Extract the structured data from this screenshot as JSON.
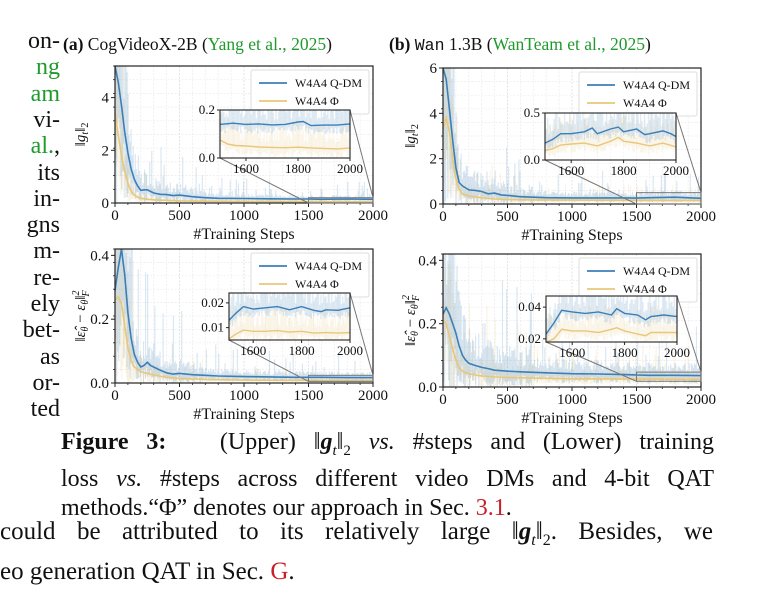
{
  "left_column_fragments": [
    {
      "text": "on-",
      "color": "black"
    },
    {
      "text": "ng",
      "color": "green"
    },
    {
      "text": "am",
      "color": "green"
    },
    {
      "text": "vi-",
      "color": "black"
    },
    {
      "text": "al.",
      "color": "green",
      "suffix": ","
    },
    {
      "text": "its",
      "color": "black"
    },
    {
      "text": "in-",
      "color": "black"
    },
    {
      "text": "gns",
      "color": "black"
    },
    {
      "text": "m-",
      "color": "black"
    },
    {
      "text": "re-",
      "color": "black"
    },
    {
      "text": "ely",
      "color": "black"
    },
    {
      "text": "bet-",
      "color": "black"
    },
    {
      "text": "as",
      "color": "black"
    },
    {
      "text": "or-",
      "color": "black"
    },
    {
      "text": "ted",
      "color": "black"
    }
  ],
  "subfigures": {
    "a": {
      "tag": "(a)",
      "model": "CogVideoX-2B",
      "cite_open": "(",
      "cite_text": "Yang et al.,",
      "cite_year": "2025",
      "cite_close": ")"
    },
    "b": {
      "tag": "(b)",
      "model_mono": "Wan",
      "model_rest": "1.3B",
      "cite_open": "(",
      "cite_text": "WanTeam et al.,",
      "cite_year": "2025",
      "cite_close": ")"
    }
  },
  "legend": {
    "qdm": "W4A4 Q-DM",
    "phi": "W4A4 Φ"
  },
  "colors": {
    "qdm": "#3b7fb8",
    "phi": "#e8c77a",
    "citation_green": "#1f9a2c",
    "ref_red": "#c8202a"
  },
  "xlabel": "#Training Steps",
  "chart_data": [
    {
      "id": "a-upper",
      "type": "line",
      "title": "CogVideoX-2B grad norm",
      "xlabel": "#Training Steps",
      "ylabel": "||g_t||_2",
      "xlim": [
        0,
        2000
      ],
      "ylim": [
        0,
        5.2
      ],
      "xticks": [
        0,
        500,
        1000,
        1500,
        2000
      ],
      "yticks": [
        0,
        2,
        4
      ],
      "ytick_labels": [
        "0",
        "2",
        "4"
      ],
      "grid": true,
      "legend": "top-right",
      "series": [
        {
          "name": "W4A4 Q-DM",
          "x": [
            0,
            25,
            50,
            75,
            100,
            125,
            150,
            175,
            200,
            225,
            250,
            300,
            350,
            400,
            450,
            500,
            600,
            700,
            800,
            1000,
            1200,
            1400,
            1500,
            1600,
            1800,
            2000
          ],
          "y": [
            5.2,
            4.6,
            3.7,
            2.7,
            1.9,
            1.3,
            0.9,
            0.65,
            0.48,
            0.5,
            0.5,
            0.38,
            0.33,
            0.32,
            0.28,
            0.3,
            0.24,
            0.2,
            0.18,
            0.17,
            0.16,
            0.15,
            0.15,
            0.14,
            0.15,
            0.14
          ]
        },
        {
          "name": "W4A4 Φ",
          "x": [
            0,
            25,
            50,
            75,
            100,
            125,
            150,
            175,
            200,
            250,
            300,
            400,
            500,
            700,
            1000,
            1500,
            2000
          ],
          "y": [
            3.4,
            2.6,
            1.8,
            1.2,
            0.75,
            0.45,
            0.3,
            0.22,
            0.18,
            0.14,
            0.12,
            0.1,
            0.08,
            0.07,
            0.06,
            0.05,
            0.04
          ]
        }
      ],
      "inset": {
        "xlim": [
          1500,
          2000
        ],
        "ylim": [
          0,
          0.2
        ],
        "xticks": [
          1600,
          1800,
          2000
        ],
        "yticks": [
          0.0,
          0.2
        ],
        "ytick_labels": [
          "0.0",
          "0.2"
        ],
        "series": [
          {
            "name": "W4A4 Q-DM",
            "x": [
              1500,
              1550,
              1600,
              1650,
              1700,
              1750,
              1800,
              1820,
              1850,
              1900,
              1950,
              2000
            ],
            "y": [
              0.14,
              0.145,
              0.14,
              0.142,
              0.138,
              0.14,
              0.15,
              0.152,
              0.135,
              0.137,
              0.137,
              0.142
            ]
          },
          {
            "name": "W4A4 Φ",
            "x": [
              1500,
              1530,
              1560,
              1600,
              1650,
              1700,
              1750,
              1800,
              1850,
              1900,
              1950,
              2000
            ],
            "y": [
              0.075,
              0.058,
              0.052,
              0.05,
              0.046,
              0.044,
              0.043,
              0.045,
              0.042,
              0.04,
              0.038,
              0.042
            ]
          }
        ]
      }
    },
    {
      "id": "b-upper",
      "type": "line",
      "title": "Wan 1.3B grad norm",
      "xlabel": "#Training Steps",
      "ylabel": "||g_t||_2",
      "xlim": [
        0,
        2000
      ],
      "ylim": [
        0,
        6
      ],
      "xticks": [
        0,
        500,
        1000,
        1500,
        2000
      ],
      "yticks": [
        0,
        2,
        4,
        6
      ],
      "ytick_labels": [
        "0",
        "2",
        "4",
        "6"
      ],
      "grid": true,
      "legend": "top-right",
      "series": [
        {
          "name": "W4A4 Q-DM",
          "x": [
            0,
            25,
            50,
            75,
            100,
            125,
            150,
            200,
            250,
            300,
            350,
            400,
            450,
            500,
            600,
            700,
            800,
            1000,
            1200,
            1400,
            1500,
            1600,
            1800,
            2000
          ],
          "y": [
            6.0,
            5.5,
            4.2,
            2.8,
            1.6,
            0.95,
            0.8,
            0.62,
            0.6,
            0.55,
            0.45,
            0.48,
            0.4,
            0.38,
            0.32,
            0.3,
            0.28,
            0.27,
            0.27,
            0.27,
            0.26,
            0.28,
            0.3,
            0.25
          ]
        },
        {
          "name": "W4A4 Φ",
          "x": [
            0,
            25,
            50,
            75,
            100,
            125,
            150,
            200,
            300,
            400,
            500,
            700,
            1000,
            1500,
            2000
          ],
          "y": [
            3.3,
            3.8,
            3.2,
            2.0,
            1.1,
            0.65,
            0.45,
            0.35,
            0.28,
            0.22,
            0.2,
            0.18,
            0.17,
            0.16,
            0.15
          ]
        }
      ],
      "inset": {
        "xlim": [
          1500,
          2000
        ],
        "ylim": [
          0,
          0.5
        ],
        "xticks": [
          1600,
          1800,
          2000
        ],
        "yticks": [
          0.0,
          0.5
        ],
        "ytick_labels": [
          "0.0",
          "0.5"
        ],
        "series": [
          {
            "name": "W4A4 Q-DM",
            "x": [
              1500,
              1530,
              1560,
              1600,
              1650,
              1680,
              1700,
              1750,
              1780,
              1800,
              1850,
              1880,
              1900,
              1950,
              1980,
              2000
            ],
            "y": [
              0.18,
              0.22,
              0.28,
              0.28,
              0.3,
              0.34,
              0.28,
              0.33,
              0.35,
              0.3,
              0.33,
              0.27,
              0.28,
              0.31,
              0.28,
              0.25
            ]
          },
          {
            "name": "W4A4 Φ",
            "x": [
              1500,
              1530,
              1560,
              1600,
              1650,
              1700,
              1750,
              1780,
              1800,
              1850,
              1900,
              1950,
              2000
            ],
            "y": [
              0.1,
              0.12,
              0.16,
              0.17,
              0.18,
              0.15,
              0.2,
              0.24,
              0.2,
              0.18,
              0.15,
              0.18,
              0.14
            ]
          }
        ]
      }
    },
    {
      "id": "a-lower",
      "type": "line",
      "title": "CogVideoX-2B training loss",
      "xlabel": "#Training Steps",
      "ylabel": "||ε̂_θ − ε_θ||_F^2",
      "xlim": [
        0,
        2000
      ],
      "ylim": [
        0,
        0.42
      ],
      "xticks": [
        0,
        500,
        1000,
        1500,
        2000
      ],
      "yticks": [
        0.0,
        0.2,
        0.4
      ],
      "ytick_labels": [
        "0.0",
        "0.2",
        "0.4"
      ],
      "grid": true,
      "legend": "top-right",
      "series": [
        {
          "name": "W4A4 Q-DM",
          "x": [
            0,
            25,
            50,
            75,
            100,
            125,
            150,
            175,
            200,
            225,
            250,
            275,
            300,
            350,
            400,
            450,
            500,
            600,
            700,
            800,
            1000,
            1200,
            1400,
            1500,
            1600,
            1800,
            2000
          ],
          "y": [
            0.29,
            0.36,
            0.42,
            0.34,
            0.22,
            0.14,
            0.09,
            0.065,
            0.05,
            0.055,
            0.065,
            0.055,
            0.05,
            0.04,
            0.032,
            0.028,
            0.03,
            0.026,
            0.024,
            0.022,
            0.02,
            0.019,
            0.018,
            0.018,
            0.018,
            0.017,
            0.017
          ]
        },
        {
          "name": "W4A4 Φ",
          "x": [
            0,
            25,
            50,
            75,
            100,
            125,
            150,
            200,
            250,
            300,
            400,
            500,
            700,
            1000,
            1500,
            2000
          ],
          "y": [
            0.26,
            0.27,
            0.25,
            0.18,
            0.11,
            0.07,
            0.05,
            0.035,
            0.03,
            0.025,
            0.018,
            0.014,
            0.011,
            0.009,
            0.008,
            0.008
          ]
        }
      ],
      "inset": {
        "xlim": [
          1500,
          2000
        ],
        "ylim": [
          0.005,
          0.024
        ],
        "xticks": [
          1600,
          1800,
          2000
        ],
        "yticks": [
          0.01,
          0.02
        ],
        "ytick_labels": [
          "0.01",
          "0.02"
        ],
        "series": [
          {
            "name": "W4A4 Q-DM",
            "x": [
              1500,
              1530,
              1560,
              1600,
              1650,
              1700,
              1750,
              1800,
              1850,
              1880,
              1900,
              1950,
              2000
            ],
            "y": [
              0.013,
              0.016,
              0.0185,
              0.0175,
              0.018,
              0.0185,
              0.0172,
              0.0185,
              0.017,
              0.0165,
              0.0172,
              0.017,
              0.018
            ]
          },
          {
            "name": "W4A4 Φ",
            "x": [
              1500,
              1530,
              1560,
              1600,
              1650,
              1700,
              1750,
              1800,
              1850,
              1900,
              1950,
              2000
            ],
            "y": [
              0.0055,
              0.0075,
              0.009,
              0.0085,
              0.0085,
              0.0088,
              0.0082,
              0.0085,
              0.0078,
              0.008,
              0.0078,
              0.008
            ]
          }
        ]
      }
    },
    {
      "id": "b-lower",
      "type": "line",
      "title": "Wan 1.3B training loss",
      "xlabel": "#Training Steps",
      "ylabel": "||ε̂_θ − ε_θ||_F^2",
      "xlim": [
        0,
        2000
      ],
      "ylim": [
        0,
        0.42
      ],
      "xticks": [
        0,
        500,
        1000,
        1500,
        2000
      ],
      "yticks": [
        0.0,
        0.2,
        0.4
      ],
      "ytick_labels": [
        "0.0",
        "0.2",
        "0.4"
      ],
      "grid": true,
      "legend": "top-right",
      "series": [
        {
          "name": "W4A4 Q-DM",
          "x": [
            0,
            25,
            50,
            75,
            100,
            125,
            150,
            175,
            200,
            250,
            300,
            350,
            400,
            500,
            600,
            800,
            1000,
            1200,
            1400,
            1500,
            1600,
            1800,
            2000
          ],
          "y": [
            0.23,
            0.25,
            0.23,
            0.2,
            0.17,
            0.13,
            0.1,
            0.085,
            0.075,
            0.068,
            0.062,
            0.058,
            0.053,
            0.05,
            0.048,
            0.045,
            0.042,
            0.041,
            0.039,
            0.038,
            0.037,
            0.037,
            0.036
          ]
        },
        {
          "name": "W4A4 Φ",
          "x": [
            0,
            25,
            50,
            75,
            100,
            125,
            150,
            200,
            250,
            300,
            400,
            500,
            700,
            1000,
            1500,
            2000
          ],
          "y": [
            0.21,
            0.2,
            0.16,
            0.12,
            0.085,
            0.06,
            0.05,
            0.042,
            0.038,
            0.035,
            0.032,
            0.03,
            0.028,
            0.026,
            0.025,
            0.024
          ]
        }
      ],
      "inset": {
        "xlim": [
          1500,
          2000
        ],
        "ylim": [
          0.018,
          0.047
        ],
        "xticks": [
          1600,
          1800,
          2000
        ],
        "yticks": [
          0.02,
          0.04
        ],
        "ytick_labels": [
          "0.02",
          "0.04"
        ],
        "series": [
          {
            "name": "W4A4 Q-DM",
            "x": [
              1500,
              1530,
              1560,
              1600,
              1650,
              1700,
              1750,
              1770,
              1800,
              1850,
              1880,
              1900,
              1950,
              2000
            ],
            "y": [
              0.023,
              0.03,
              0.038,
              0.037,
              0.036,
              0.037,
              0.035,
              0.039,
              0.036,
              0.035,
              0.032,
              0.034,
              0.035,
              0.034
            ]
          },
          {
            "name": "W4A4 Φ",
            "x": [
              1500,
              1530,
              1560,
              1600,
              1650,
              1700,
              1750,
              1770,
              1800,
              1850,
              1880,
              1900,
              1950,
              2000
            ],
            "y": [
              0.017,
              0.02,
              0.026,
              0.025,
              0.025,
              0.024,
              0.026,
              0.027,
              0.025,
              0.023,
              0.022,
              0.024,
              0.024,
              0.024
            ]
          }
        ]
      }
    }
  ],
  "caption": {
    "label": "Figure 3:",
    "line1_a": "(Upper)",
    "line1_b": "vs.",
    "line1_c": "#steps and (Lower) training",
    "line2_a": "loss",
    "line2_b": "vs.",
    "line2_c": "#steps across different video DMs and 4-bit QAT",
    "line3_a": "methods.“Φ” denotes our approach in Sec.",
    "line3_ref": "3.1",
    "line3_end": "."
  },
  "body_text": {
    "line1_a": "could be attributed to its relatively large",
    "line1_b": ". Besides, we",
    "line2_a": "eo generation QAT in Sec.",
    "line2_ref": "G",
    "line2_end": "."
  }
}
